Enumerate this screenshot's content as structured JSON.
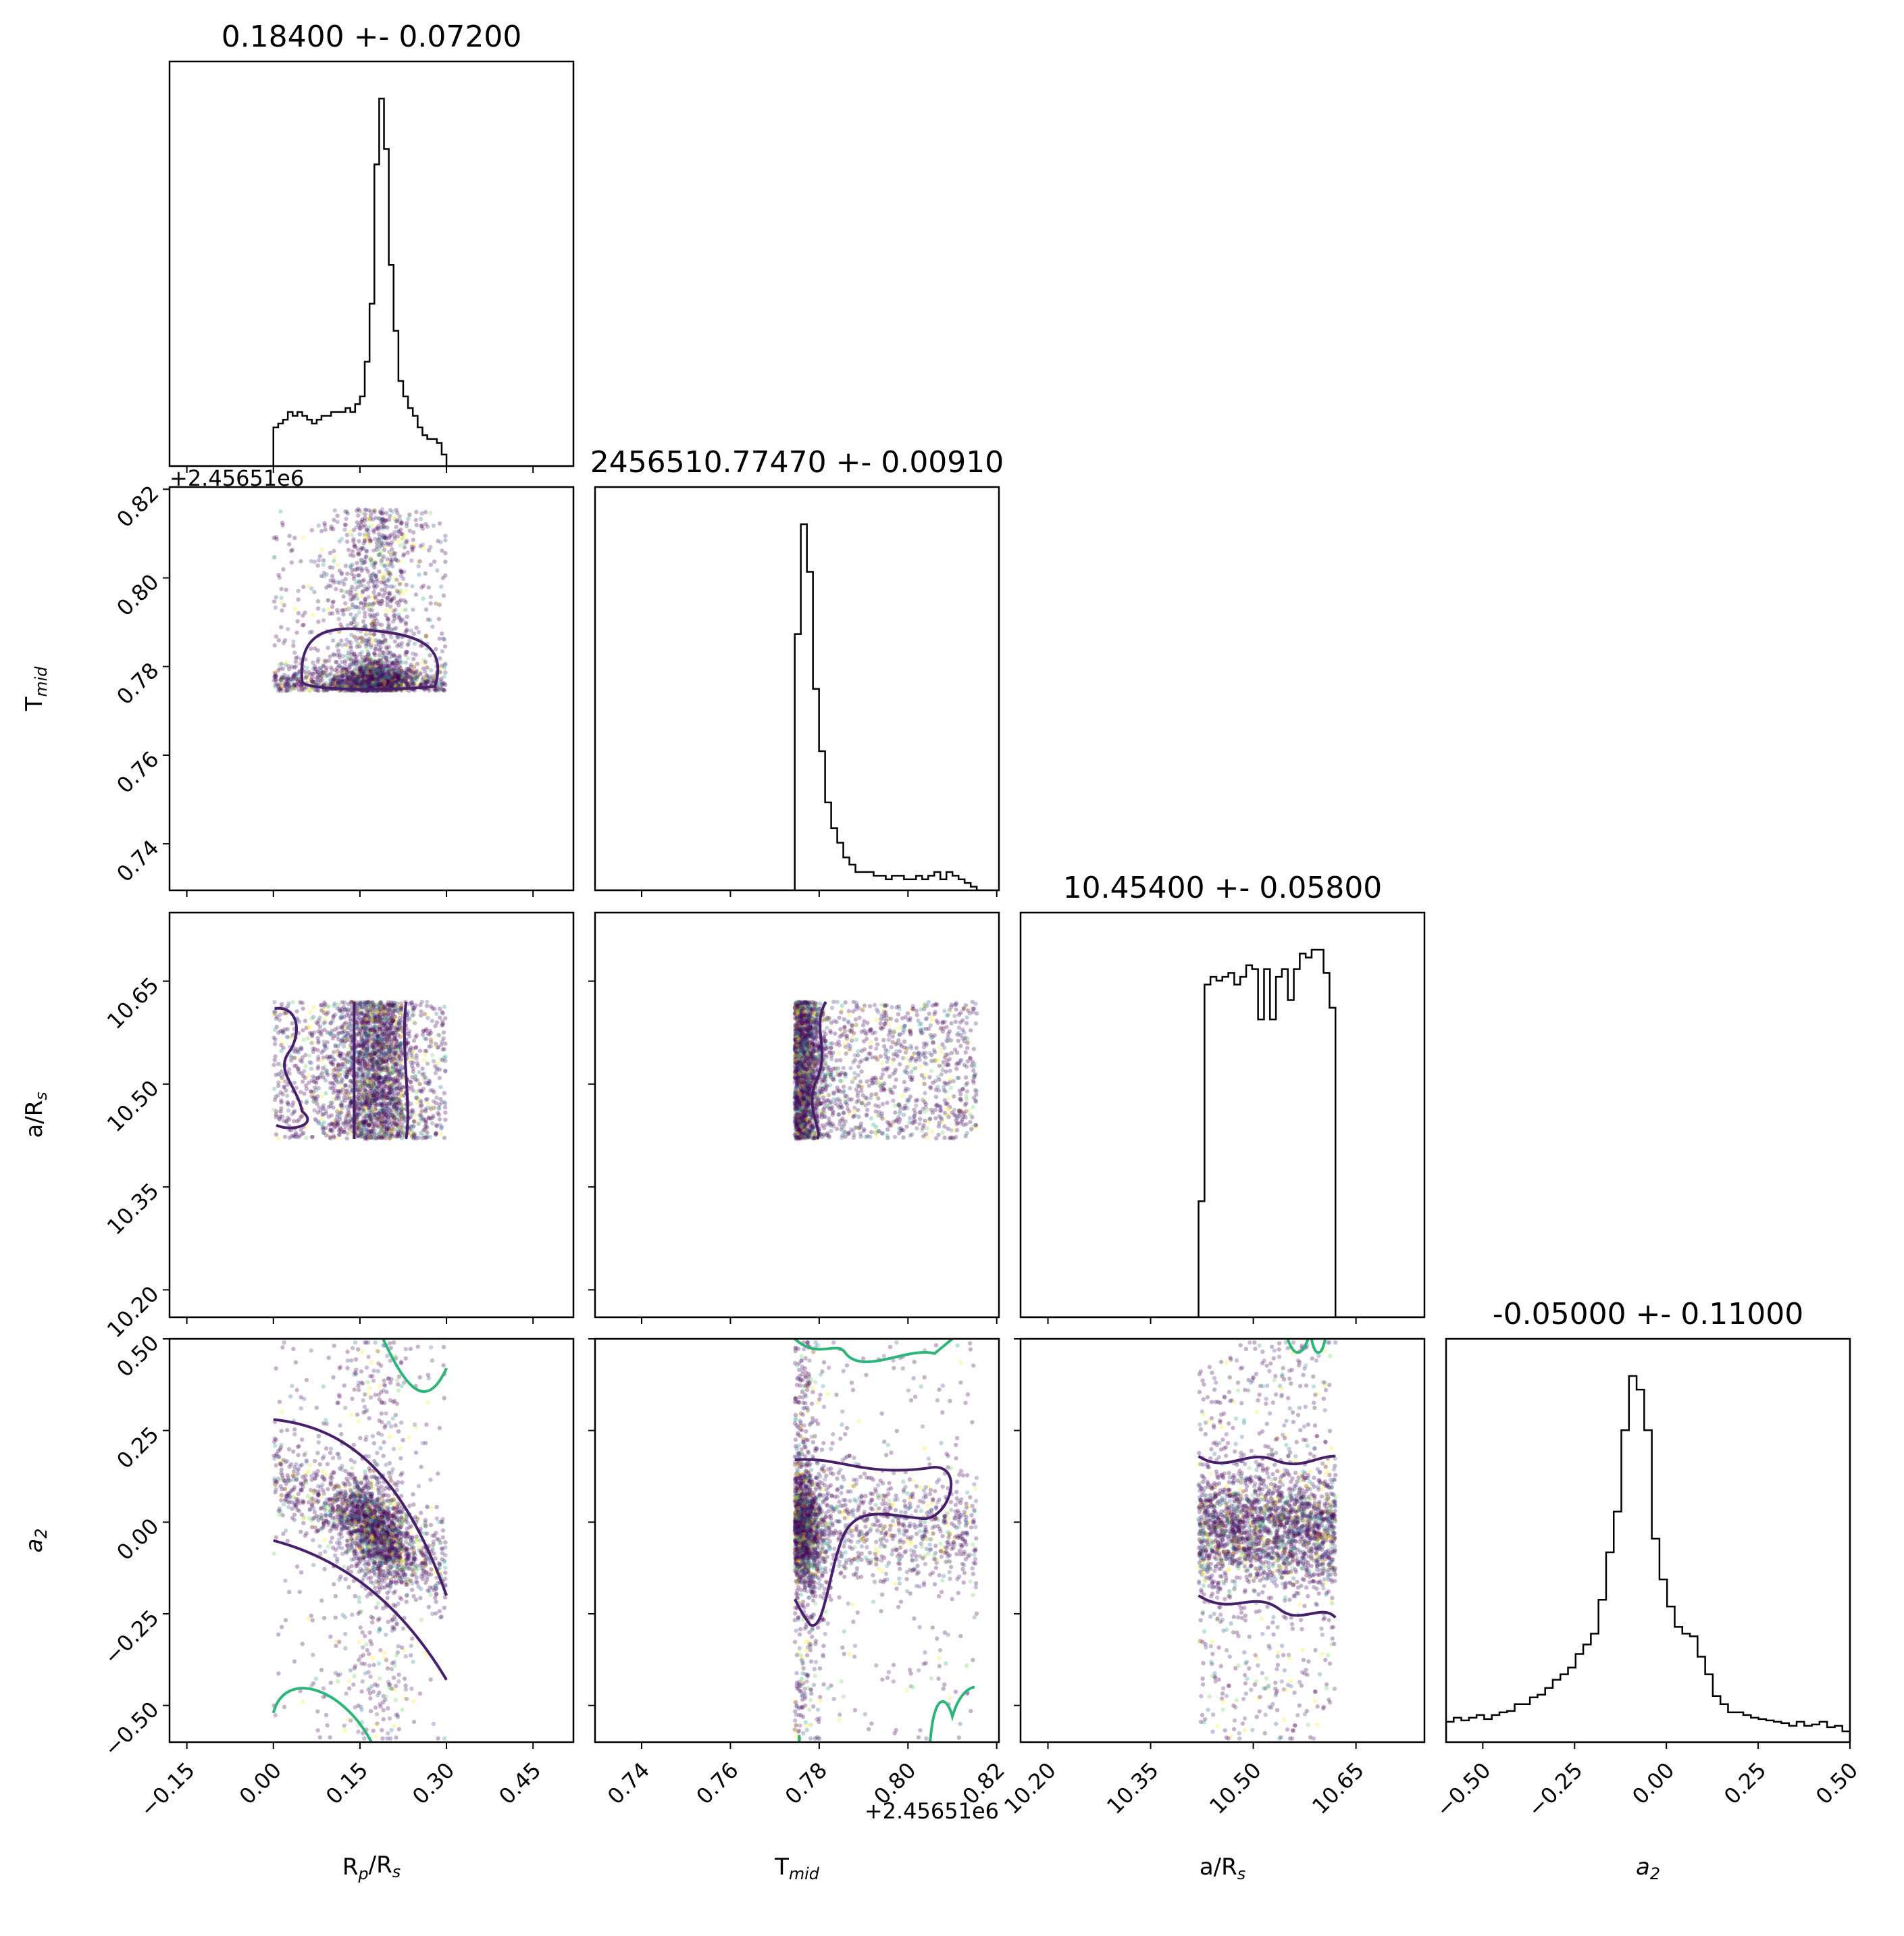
{
  "chart_data": {
    "type": "corner",
    "parameters": [
      "Rp/Rs",
      "Tmid",
      "a/Rs",
      "a2"
    ],
    "axis_labels": {
      "x": [
        {
          "base": "R",
          "sub": "p",
          "mid": "/R",
          "sub2": "s"
        },
        {
          "base": "T",
          "sub": "mid",
          "mid": "",
          "sub2": ""
        },
        {
          "base": "a/R",
          "sub": "s",
          "mid": "",
          "sub2": ""
        },
        {
          "base": "a",
          "sub": "2",
          "mid": "",
          "sub2": "",
          "italic": true
        }
      ],
      "y": [
        null,
        {
          "base": "T",
          "sub": "mid",
          "mid": "",
          "sub2": ""
        },
        {
          "base": "a/R",
          "sub": "s",
          "mid": "",
          "sub2": ""
        },
        {
          "base": "a",
          "sub": "2",
          "mid": "",
          "sub2": "",
          "italic": true
        }
      ]
    },
    "titles": [
      "0.18400 +- 0.07200",
      "2456510.77470 +- 0.00910",
      "10.45400 +- 0.05800",
      "-0.05000 +- 0.11000"
    ],
    "offset_text": "+2.45651e6",
    "ranges": [
      [
        -0.18,
        0.52
      ],
      [
        0.7295,
        0.8205
      ],
      [
        10.16,
        10.75
      ],
      [
        -0.6,
        0.5
      ]
    ],
    "ticks": [
      [
        -0.15,
        0.0,
        0.15,
        0.3,
        0.45
      ],
      [
        0.74,
        0.76,
        0.78,
        0.8,
        0.82
      ],
      [
        10.2,
        10.35,
        10.5,
        10.65
      ],
      [
        -0.5,
        -0.25,
        0.0,
        0.25,
        0.5
      ]
    ],
    "tick_labels": [
      [
        "−0.15",
        "0.00",
        "0.15",
        "0.30",
        "0.45"
      ],
      [
        "0.74",
        "0.76",
        "0.78",
        "0.80",
        "0.82"
      ],
      [
        "10.20",
        "10.35",
        "10.50",
        "10.65"
      ],
      [
        "−0.50",
        "−0.25",
        "0.00",
        "0.25",
        "0.50"
      ]
    ],
    "histograms": [
      {
        "param": "Rp/Rs",
        "edges": [
          0.0,
          0.3
        ],
        "counts": [
          10,
          11,
          12,
          14,
          13,
          14,
          13,
          12,
          11,
          12,
          13,
          13,
          14,
          14,
          14,
          15,
          14,
          16,
          18,
          27,
          42,
          78,
          95,
          82,
          52,
          35,
          22,
          18,
          15,
          13,
          10,
          8,
          7,
          7,
          6,
          3
        ]
      },
      {
        "param": "Tmid",
        "edges": [
          0.7745,
          0.8155
        ],
        "counts": [
          70,
          100,
          87,
          55,
          38,
          24,
          17,
          13,
          9,
          7,
          5,
          5,
          5,
          4,
          4,
          3,
          4,
          4,
          3,
          3,
          4,
          3,
          4,
          5,
          3,
          5,
          4,
          3,
          2,
          1
        ]
      },
      {
        "param": "a/Rs",
        "edges": [
          10.42,
          10.62
        ],
        "counts": [
          30,
          86,
          88,
          87,
          88,
          89,
          86,
          88,
          91,
          90,
          77,
          90,
          77,
          88,
          90,
          82,
          90,
          94,
          93,
          95,
          95,
          89,
          80
        ]
      },
      {
        "param": "a2",
        "edges": [
          -0.6,
          0.5
        ],
        "counts": [
          1.5,
          1.8,
          1.6,
          1.8,
          2.0,
          1.7,
          2.0,
          2.2,
          2.3,
          2.8,
          2.8,
          3.3,
          3.5,
          4.0,
          4.6,
          5.0,
          5.5,
          6.5,
          7.2,
          8.0,
          10.5,
          14,
          17,
          23,
          27,
          26,
          23,
          15,
          12,
          10,
          8.5,
          8.0,
          7.8,
          6.3,
          5.0,
          3.4,
          2.8,
          2.2,
          2.2,
          2.0,
          1.8,
          1.7,
          1.6,
          1.5,
          1.4,
          1.2,
          1.5,
          1.2,
          1.3,
          1.5,
          1.1,
          1.2,
          0.8
        ]
      }
    ],
    "scatter_colormap": "viridis",
    "contour_colors": [
      "#46206a",
      "#2db479"
    ]
  }
}
